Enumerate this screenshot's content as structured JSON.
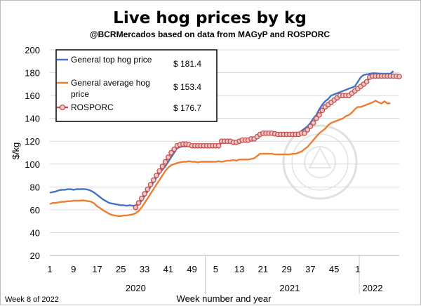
{
  "chart_data": {
    "type": "line",
    "title": "Live hog prices by kg",
    "subtitle": "@BCRMercados based on data from MAGyP and ROSPORC",
    "xlabel": "Week number and year",
    "ylabel": "$/kg",
    "ylim": [
      20,
      200
    ],
    "yticks": [
      20,
      40,
      60,
      80,
      100,
      120,
      140,
      160,
      180,
      200
    ],
    "x_tick_labels": [
      "1",
      "9",
      "17",
      "25",
      "33",
      "41",
      "49",
      "5",
      "13",
      "21",
      "29",
      "37",
      "45",
      "1"
    ],
    "year_labels": [
      "2020",
      "2021",
      "2022"
    ],
    "footnote": "Week 8 of 2022",
    "grid": true,
    "legend_position": "top-left",
    "watermark_text": "BOLSA DE COMERCIO DE ROSARIO",
    "series": [
      {
        "name": "General top hog price",
        "color": "#4472c4",
        "legend_value": "$ 181.4",
        "values": [
          75,
          75.5,
          76,
          77,
          77.5,
          77.5,
          78,
          78,
          77.5,
          78,
          78,
          78.2,
          78,
          77.5,
          76.5,
          75,
          73,
          71,
          69,
          67.5,
          66,
          65.5,
          65,
          64.5,
          64,
          64,
          63.5,
          64,
          63.5,
          64,
          65,
          68,
          72,
          76,
          80,
          84,
          88,
          92,
          95,
          98,
          102,
          106,
          110,
          114,
          115,
          115.5,
          115.5,
          116,
          115.5,
          115,
          115,
          115.5,
          115,
          115,
          115,
          115.5,
          115,
          115.5,
          119,
          119.5,
          119,
          119.5,
          119,
          120,
          120,
          121,
          121,
          122,
          122,
          123,
          125,
          126,
          126,
          126.5,
          126,
          126.5,
          126,
          125.5,
          125.5,
          125.5,
          125.5,
          125.5,
          125.5,
          126,
          126,
          129,
          131,
          133,
          136,
          140,
          143,
          148,
          152,
          155,
          157,
          160,
          161,
          162,
          163,
          164,
          165,
          166,
          167,
          168,
          172,
          176,
          178,
          178.5,
          179,
          179.5,
          179.5,
          179.2,
          179,
          179,
          179,
          179,
          181.4
        ]
      },
      {
        "name": "General average hog price",
        "color": "#ed7d31",
        "legend_value": "$ 153.4",
        "values": [
          65,
          66,
          66,
          66.5,
          67,
          67,
          67.5,
          67.5,
          68,
          68,
          68,
          68.2,
          68,
          67.5,
          67,
          65.5,
          63,
          61.5,
          59.5,
          58,
          56.5,
          55.5,
          55,
          54.5,
          54.5,
          55,
          55,
          55.5,
          56,
          57,
          59,
          62,
          66,
          70,
          74,
          78,
          82,
          86,
          90,
          94,
          97,
          99,
          100,
          101,
          101.5,
          102,
          102,
          102.5,
          102,
          102,
          101.5,
          102,
          102,
          102,
          102,
          102,
          102,
          102.5,
          102,
          102.5,
          103,
          103,
          103.5,
          103,
          104,
          104,
          104,
          104,
          104.5,
          105,
          107,
          109,
          109,
          109,
          109,
          109,
          108.5,
          108.5,
          108.5,
          108.5,
          108.5,
          108.5,
          109,
          109,
          110,
          111,
          113,
          115,
          118,
          121,
          124,
          127,
          129,
          131,
          134,
          136,
          137,
          138,
          139,
          140,
          142,
          143,
          145,
          148,
          150,
          150,
          151,
          152,
          153,
          154,
          155.5,
          154,
          153,
          155,
          153,
          153.4
        ]
      },
      {
        "name": "ROSPORC",
        "color": "#c0504d",
        "marker": "circle",
        "legend_value": "$ 176.7",
        "start_index": 29,
        "values": [
          62,
          66,
          70,
          74,
          78,
          82,
          86,
          90,
          94,
          98,
          102,
          106,
          110,
          113,
          116,
          117,
          117.5,
          117.5,
          117,
          116,
          116,
          116,
          116,
          116,
          116,
          116,
          116,
          116,
          116,
          120,
          120,
          120,
          120,
          119,
          119,
          120,
          121,
          121,
          121,
          122,
          122,
          124,
          126,
          127,
          127,
          127,
          127,
          126.5,
          126,
          126,
          126,
          126,
          126,
          126,
          126,
          126,
          127,
          127,
          130,
          133,
          136,
          140,
          143,
          147,
          150,
          152,
          154,
          156,
          158,
          160,
          160,
          160,
          160,
          162,
          164,
          166,
          168,
          170,
          172,
          176,
          177,
          177,
          177,
          177,
          177,
          177,
          177,
          177,
          177,
          176.7
        ]
      }
    ]
  }
}
